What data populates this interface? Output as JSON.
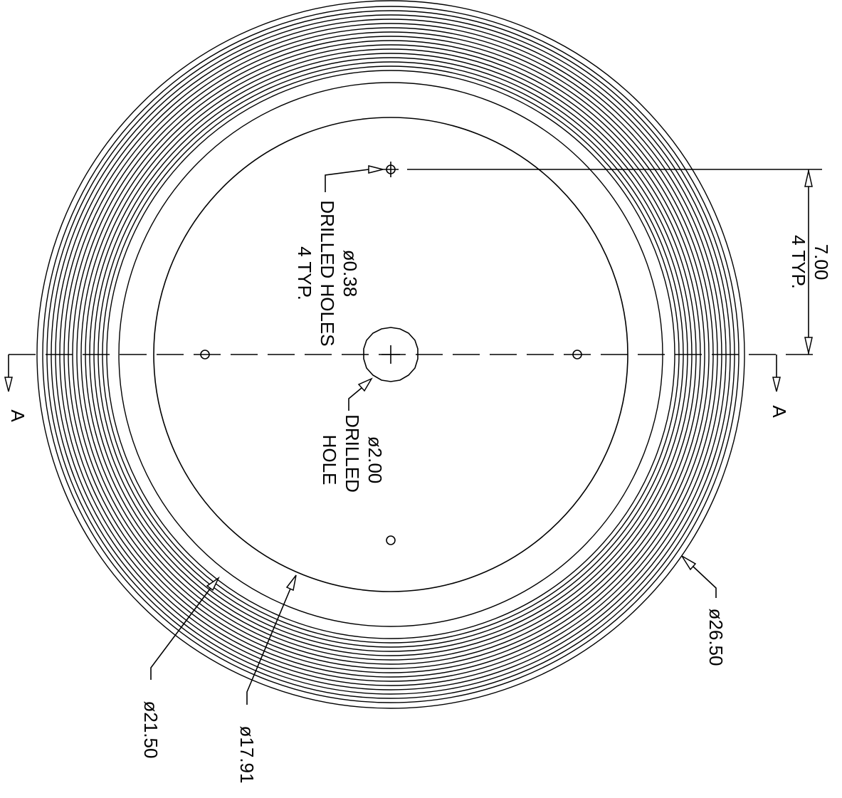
{
  "drawing": {
    "section_label_left": "A",
    "section_label_right": "A",
    "outer_diameter_label": "ø26.50",
    "ring_diameter_label": "ø21.50",
    "inner_diameter_label": "ø17.91",
    "center_hole": {
      "line1": "ø2.00",
      "line2": "DRILLED",
      "line3": "HOLE"
    },
    "small_holes": {
      "line1": "ø0.38",
      "line2": "DRILLED HOLES",
      "line3": "4 TYP."
    },
    "offset_dimension": {
      "line1": "7.00",
      "line2": "4 TYP."
    }
  }
}
